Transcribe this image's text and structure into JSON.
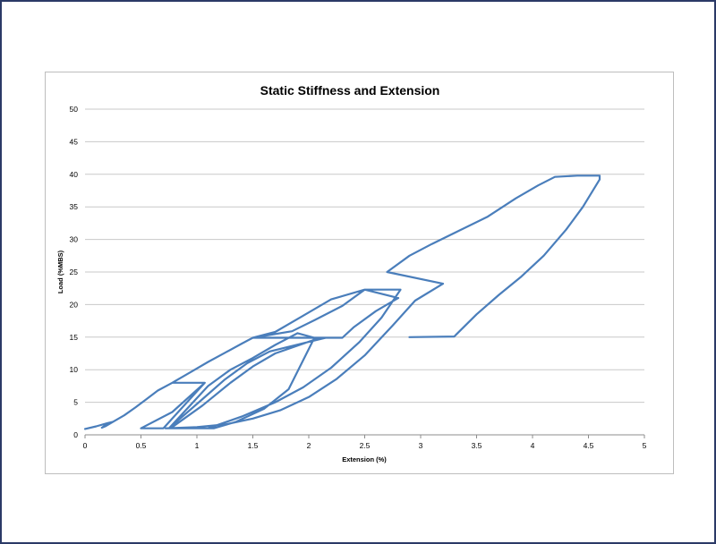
{
  "chart_data": {
    "type": "line",
    "title": "Static Stiffness and Extension",
    "xlabel": "Extension (%)",
    "ylabel": "Load (%MBS)",
    "xlim": [
      0,
      5
    ],
    "ylim": [
      0,
      50
    ],
    "x_ticks": [
      "0",
      "0.5",
      "1",
      "1.5",
      "2",
      "2.5",
      "3",
      "3.5",
      "4",
      "4.5",
      "5"
    ],
    "y_ticks": [
      "0",
      "5",
      "10",
      "15",
      "20",
      "25",
      "30",
      "35",
      "40",
      "45",
      "50"
    ],
    "grid": true,
    "legend": "none",
    "line_color": "#4a7ebb",
    "series": [
      {
        "points": [
          [
            0.0,
            0.9
          ],
          [
            0.1,
            1.3
          ],
          [
            0.2,
            1.8
          ],
          [
            0.25,
            2.0
          ],
          [
            0.2,
            1.7
          ],
          [
            0.15,
            1.1
          ],
          [
            0.18,
            1.3
          ],
          [
            0.25,
            2.0
          ],
          [
            0.35,
            3.0
          ],
          [
            0.45,
            4.2
          ],
          [
            0.55,
            5.5
          ],
          [
            0.65,
            6.8
          ],
          [
            0.78,
            8.0
          ],
          [
            1.07,
            8.0
          ],
          [
            0.7,
            1.0
          ],
          [
            0.5,
            1.0
          ],
          [
            0.78,
            3.5
          ],
          [
            1.07,
            8.0
          ],
          [
            0.78,
            8.0
          ],
          [
            0.8,
            8.2
          ],
          [
            0.95,
            9.7
          ],
          [
            1.1,
            11.2
          ],
          [
            1.25,
            12.6
          ],
          [
            1.4,
            14.0
          ],
          [
            1.5,
            14.9
          ],
          [
            2.15,
            14.9
          ],
          [
            1.65,
            12.8
          ],
          [
            1.45,
            11.0
          ],
          [
            1.25,
            8.5
          ],
          [
            1.05,
            5.5
          ],
          [
            0.75,
            1.0
          ],
          [
            1.15,
            1.0
          ],
          [
            1.35,
            2.0
          ],
          [
            1.6,
            4.0
          ],
          [
            1.82,
            7.0
          ],
          [
            2.05,
            14.9
          ],
          [
            1.9,
            15.6
          ],
          [
            1.7,
            13.8
          ],
          [
            1.5,
            11.8
          ],
          [
            1.3,
            10.0
          ],
          [
            1.1,
            7.5
          ],
          [
            0.75,
            1.0
          ],
          [
            0.78,
            1.2
          ],
          [
            1.05,
            4.5
          ],
          [
            1.3,
            8.0
          ],
          [
            1.5,
            10.5
          ],
          [
            1.7,
            12.5
          ],
          [
            1.95,
            14.0
          ],
          [
            2.1,
            14.9
          ],
          [
            2.3,
            14.9
          ],
          [
            2.4,
            16.5
          ],
          [
            2.6,
            19.0
          ],
          [
            2.8,
            21.0
          ],
          [
            2.5,
            22.3
          ],
          [
            2.2,
            20.8
          ],
          [
            1.95,
            18.3
          ],
          [
            1.7,
            15.8
          ],
          [
            1.5,
            14.9
          ],
          [
            1.85,
            15.9
          ],
          [
            2.05,
            17.6
          ],
          [
            2.3,
            19.8
          ],
          [
            2.5,
            22.3
          ],
          [
            2.82,
            22.3
          ],
          [
            2.65,
            18.0
          ],
          [
            2.45,
            14.2
          ],
          [
            2.2,
            10.3
          ],
          [
            1.95,
            7.3
          ],
          [
            1.7,
            5.0
          ],
          [
            1.4,
            2.8
          ],
          [
            1.1,
            1.0
          ],
          [
            0.72,
            1.0
          ],
          [
            1.0,
            1.2
          ],
          [
            1.25,
            1.6
          ],
          [
            1.5,
            2.5
          ],
          [
            1.75,
            3.8
          ],
          [
            2.0,
            5.8
          ],
          [
            2.25,
            8.6
          ],
          [
            2.5,
            12.2
          ],
          [
            2.75,
            16.8
          ],
          [
            2.95,
            20.6
          ],
          [
            3.2,
            23.2
          ],
          [
            2.7,
            25.0
          ],
          [
            2.9,
            27.5
          ],
          [
            3.1,
            29.3
          ],
          [
            3.35,
            31.4
          ],
          [
            3.6,
            33.5
          ],
          [
            3.85,
            36.3
          ],
          [
            4.05,
            38.3
          ],
          [
            4.2,
            39.6
          ],
          [
            4.4,
            39.8
          ],
          [
            4.6,
            39.8
          ],
          [
            4.6,
            39.2
          ],
          [
            4.45,
            35.0
          ],
          [
            4.3,
            31.5
          ],
          [
            4.1,
            27.5
          ],
          [
            3.9,
            24.3
          ],
          [
            3.7,
            21.5
          ],
          [
            3.5,
            18.5
          ],
          [
            3.3,
            15.1
          ],
          [
            2.9,
            15.0
          ]
        ]
      }
    ]
  }
}
